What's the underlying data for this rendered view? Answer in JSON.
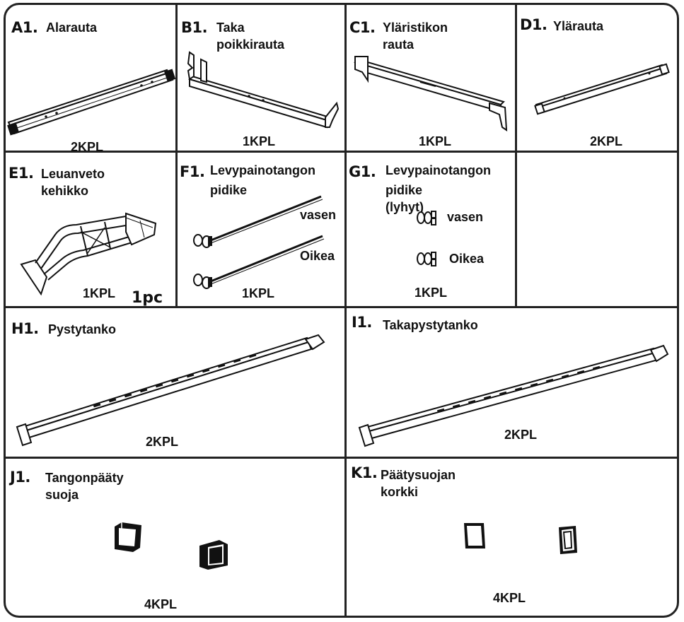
{
  "parts": {
    "A1": {
      "code": "A1.",
      "name": "Alarauta",
      "qty": "2KPL"
    },
    "B1": {
      "code": "B1.",
      "name": "Taka poikkirauta",
      "qty": "1KPL"
    },
    "C1": {
      "code": "C1.",
      "name": "Yläristikon rauta",
      "qty": "1KPL"
    },
    "D1": {
      "code": "D1.",
      "name": "Ylärauta",
      "qty": "2KPL"
    },
    "E1": {
      "code": "E1.",
      "name": "Leuanveto kehikko",
      "qty": "1KPL",
      "pc": "1pc"
    },
    "F1": {
      "code": "F1.",
      "name_line1": "Levypainotangon",
      "name_line2": "pidike",
      "left": "vasen",
      "right": "Oikea",
      "qty": "1KPL"
    },
    "G1": {
      "code": "G1.",
      "name_line1": "Levypainotangon",
      "name_line2": "pidike (lyhyt)",
      "left": "vasen",
      "right": "Oikea",
      "qty": "1KPL"
    },
    "H1": {
      "code": "H1.",
      "name": "Pystytanko",
      "qty": "2KPL"
    },
    "I1": {
      "code": "I1.",
      "name": "Takapystytanko",
      "qty": "2KPL"
    },
    "J1": {
      "code": "J1.",
      "name": "Tangonpääty suoja",
      "qty": "4KPL"
    },
    "K1": {
      "code": "K1.",
      "name": "Päätysuojan korkki",
      "qty": "4KPL"
    }
  }
}
